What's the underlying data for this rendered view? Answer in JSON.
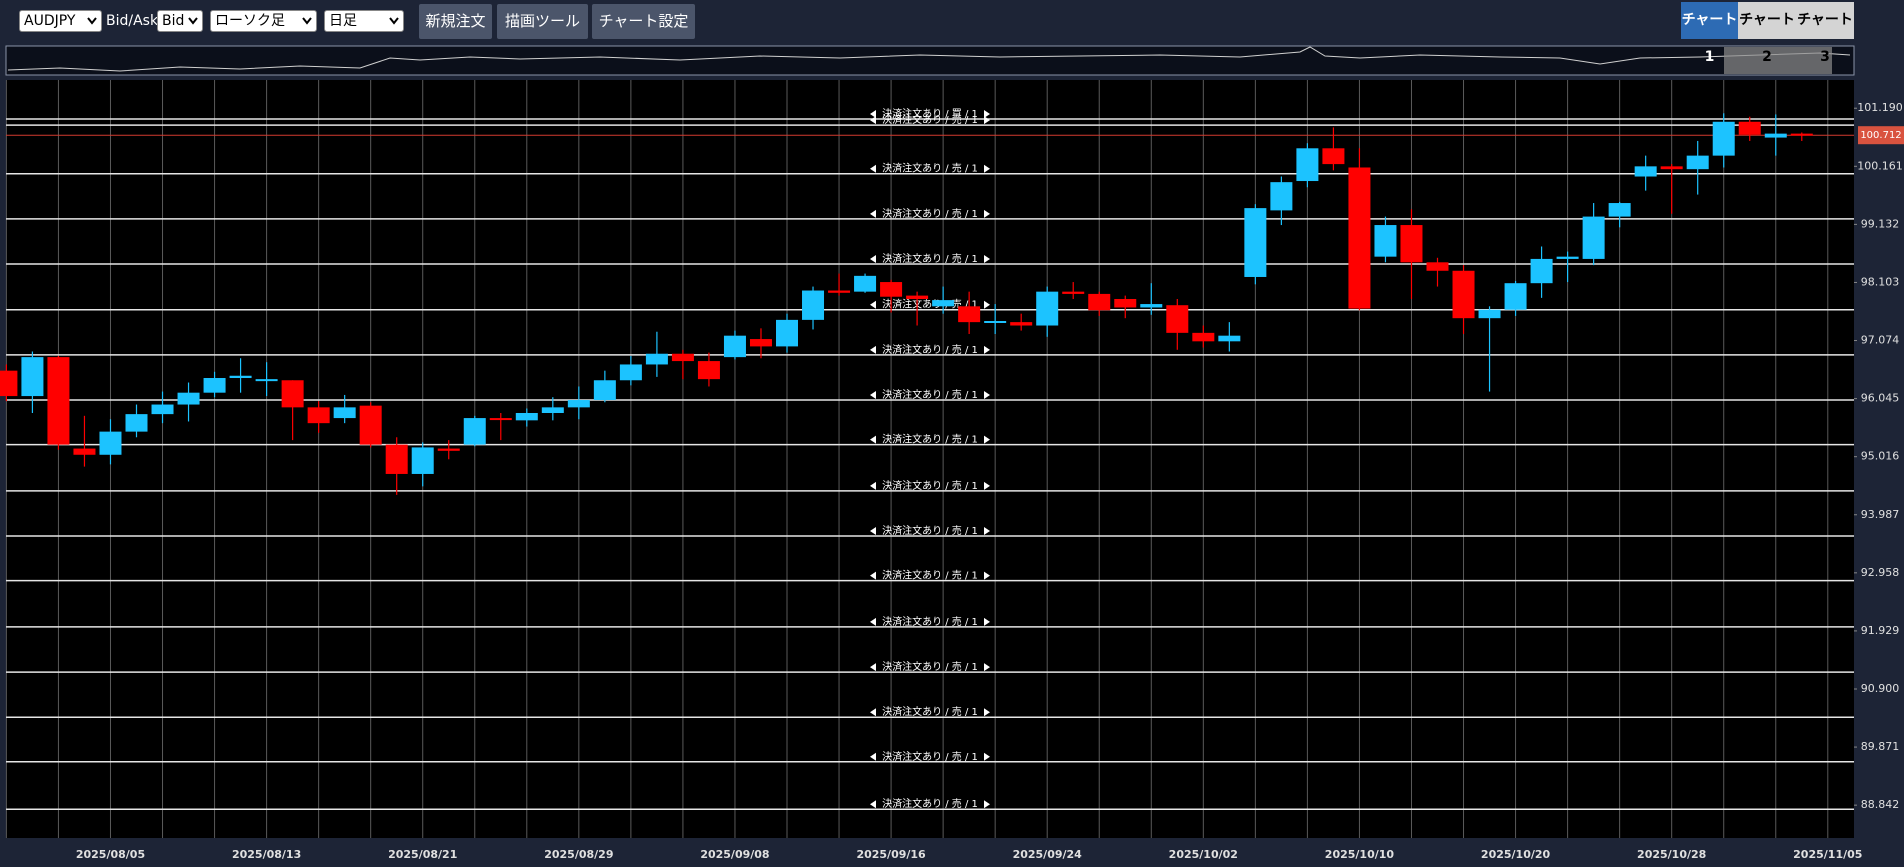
{
  "toolbar": {
    "symbol": "AUDJPY",
    "price_side_label": "Bid/Ask",
    "price_side": "Bid",
    "chart_style": "ローソク足",
    "timeframe": "日足",
    "buttons": [
      "新規注文",
      "描画ツール",
      "チャート設定"
    ],
    "tabs": [
      "チャート1",
      "チャート2",
      "チャート3"
    ]
  },
  "chart_data": {
    "type": "candlestick",
    "categories": [
      null,
      null,
      null,
      null,
      "2025/08/05",
      null,
      null,
      null,
      null,
      null,
      "2025/08/13",
      null,
      null,
      null,
      null,
      null,
      "2025/08/21",
      null,
      null,
      null,
      null,
      null,
      "2025/08/29",
      null,
      null,
      null,
      null,
      null,
      "2025/09/08",
      null,
      null,
      null,
      null,
      null,
      "2025/09/16",
      null,
      null,
      null,
      null,
      null,
      "2025/09/24",
      null,
      null,
      null,
      null,
      null,
      "2025/10/02",
      null,
      null,
      null,
      null,
      null,
      "2025/10/10",
      null,
      null,
      null,
      null,
      null,
      "2025/10/20",
      null,
      null,
      null,
      null,
      null,
      "2025/10/28",
      null,
      null,
      null,
      null,
      null,
      "2025/11/05"
    ],
    "open": [
      96.54,
      96.09,
      96.78,
      95.16,
      95.05,
      95.46,
      95.77,
      95.94,
      96.15,
      96.41,
      96.37,
      96.37,
      95.89,
      95.7,
      95.92,
      95.23,
      94.71,
      95.16,
      95.23,
      95.7,
      95.66,
      95.79,
      95.89,
      96.02,
      96.37,
      96.65,
      96.84,
      96.71,
      96.78,
      97.1,
      96.97,
      97.44,
      97.96,
      97.94,
      98.11,
      97.87,
      97.68,
      97.68,
      97.4,
      97.4,
      97.34,
      97.94,
      97.9,
      97.81,
      97.66,
      97.7,
      97.21,
      97.06,
      98.2,
      99.38,
      99.9,
      100.48,
      100.14,
      98.56,
      99.12,
      98.46,
      98.31,
      97.47,
      97.62,
      98.09,
      98.52,
      98.52,
      99.27,
      99.98,
      100.16,
      100.11,
      100.35,
      100.95,
      100.67,
      100.74,
      null
    ],
    "high": [
      96.65,
      96.88,
      96.8,
      95.74,
      95.68,
      95.94,
      96.17,
      96.33,
      96.52,
      96.76,
      96.69,
      96.37,
      96.0,
      96.11,
      95.98,
      95.36,
      95.27,
      95.31,
      95.74,
      95.79,
      95.87,
      96.07,
      96.26,
      96.54,
      96.8,
      97.23,
      96.91,
      96.86,
      97.25,
      97.29,
      97.55,
      98.03,
      98.26,
      98.26,
      98.15,
      97.94,
      98.03,
      97.94,
      97.72,
      97.55,
      98.03,
      98.11,
      97.94,
      97.87,
      98.09,
      97.81,
      97.34,
      97.4,
      99.49,
      99.98,
      100.57,
      100.85,
      100.48,
      99.27,
      99.4,
      98.54,
      98.41,
      97.68,
      98.13,
      98.74,
      98.65,
      99.51,
      99.53,
      100.35,
      100.2,
      100.61,
      101.1,
      101.04,
      101.08,
      100.76,
      null
    ],
    "low": [
      96.0,
      95.79,
      95.14,
      94.84,
      94.88,
      95.36,
      95.61,
      95.64,
      96.07,
      96.15,
      96.09,
      95.31,
      95.44,
      95.61,
      95.18,
      94.34,
      94.49,
      94.97,
      95.2,
      95.31,
      95.55,
      95.66,
      95.68,
      95.98,
      96.28,
      96.43,
      96.39,
      96.26,
      96.74,
      96.76,
      96.86,
      97.27,
      97.87,
      97.92,
      97.57,
      97.34,
      97.55,
      97.19,
      97.19,
      97.25,
      97.14,
      97.81,
      97.51,
      97.47,
      97.53,
      96.91,
      96.95,
      96.88,
      98.07,
      99.12,
      99.79,
      100.09,
      97.61,
      98.46,
      97.81,
      98.03,
      97.19,
      96.17,
      97.51,
      97.83,
      98.11,
      98.41,
      99.08,
      99.73,
      99.32,
      99.66,
      100.14,
      100.61,
      100.35,
      100.61,
      null
    ],
    "close": [
      96.09,
      96.78,
      95.23,
      95.05,
      95.46,
      95.77,
      95.94,
      96.15,
      96.41,
      96.45,
      96.39,
      95.89,
      95.61,
      95.89,
      95.23,
      94.71,
      95.18,
      95.12,
      95.7,
      95.68,
      95.79,
      95.89,
      96.02,
      96.37,
      96.65,
      96.84,
      96.71,
      96.39,
      97.16,
      96.97,
      97.44,
      97.96,
      97.92,
      98.22,
      97.85,
      97.81,
      97.79,
      97.4,
      97.42,
      97.34,
      97.94,
      97.9,
      97.61,
      97.66,
      97.72,
      97.21,
      97.06,
      97.16,
      99.42,
      99.88,
      100.48,
      100.2,
      97.64,
      99.12,
      98.46,
      98.31,
      97.47,
      97.62,
      98.09,
      98.52,
      98.56,
      99.27,
      99.51,
      100.16,
      100.11,
      100.35,
      100.95,
      100.72,
      100.74,
      100.71,
      null
    ],
    "colors": {
      "up": "#1cc3ff",
      "down": "#ff0000"
    },
    "ylim": [
      88.26,
      101.69
    ],
    "yticks": [
      {
        "value": 101.19,
        "label": "101.190"
      },
      100.161,
      99.132,
      98.103,
      97.074,
      96.045,
      95.016,
      93.987,
      92.958,
      91.929,
      {
        "value": 90.9,
        "label": "90.900"
      },
      89.871,
      88.842
    ],
    "current_price": 100.712,
    "grid": true,
    "order_lines": [
      {
        "price": 101.0,
        "label": "決済注文あり / 買 / 1"
      },
      {
        "price": 100.89,
        "label": "決済注文あり / 売 / 1"
      },
      {
        "price": 100.03,
        "label": "決済注文あり / 売 / 1"
      },
      {
        "price": 99.23,
        "label": "決済注文あり / 売 / 1"
      },
      {
        "price": 98.43,
        "label": "決済注文あり / 売 / 1"
      },
      {
        "price": 97.62,
        "label": "決済注文あり / 売 / 1"
      },
      {
        "price": 96.82,
        "label": "決済注文あり / 売 / 1"
      },
      {
        "price": 96.02,
        "label": "決済注文あり / 売 / 1"
      },
      {
        "price": 95.23,
        "label": "決済注文あり / 売 / 1"
      },
      {
        "price": 94.41,
        "label": "決済注文あり / 売 / 1"
      },
      {
        "price": 93.61,
        "label": "決済注文あり / 売 / 1"
      },
      {
        "price": 92.82,
        "label": "決済注文あり / 売 / 1"
      },
      {
        "price": 92.0,
        "label": "決済注文あり / 売 / 1"
      },
      {
        "price": 91.2,
        "label": "決済注文あり / 売 / 1"
      },
      {
        "price": 90.4,
        "label": "決済注文あり / 売 / 1"
      },
      {
        "price": 89.61,
        "label": "決済注文あり / 売 / 1"
      },
      {
        "price": 88.77,
        "label": "決済注文あり / 売 / 1"
      }
    ]
  }
}
